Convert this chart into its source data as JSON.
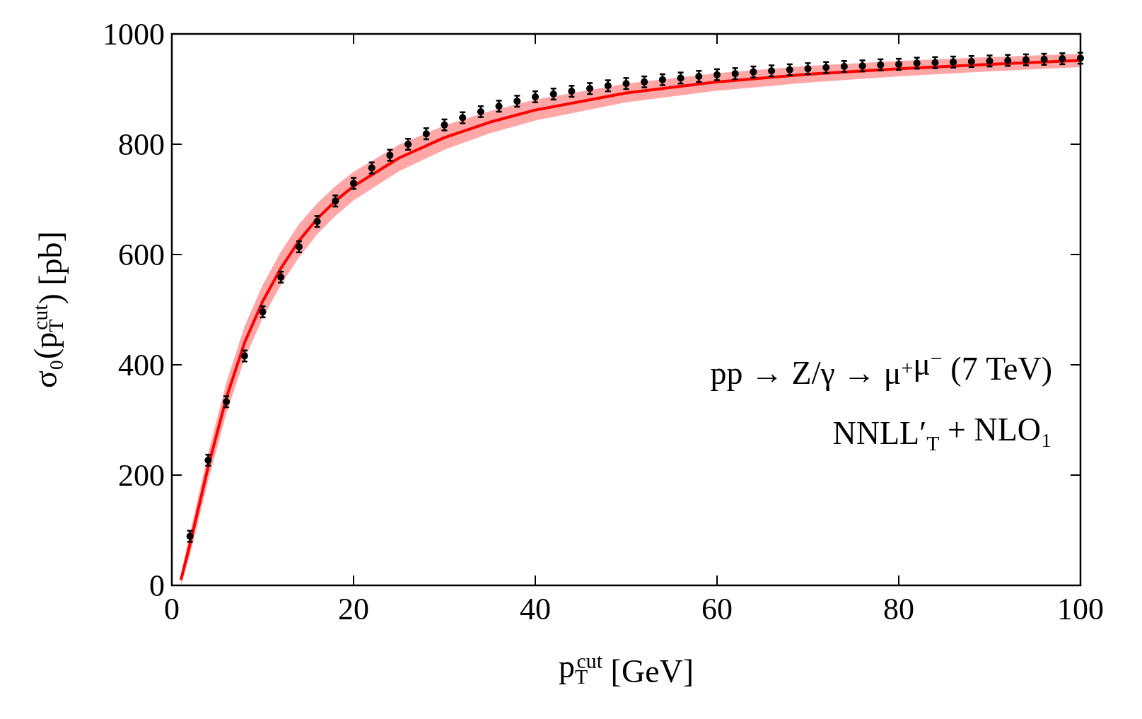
{
  "chart_data": {
    "type": "line",
    "xlabel": "p$_{T}$$^{cut}$ [GeV]",
    "ylabel": "σ₀(p$_{T}$$^{cut}$) [pb]",
    "xlim": [
      0,
      100
    ],
    "ylim": [
      0,
      1000
    ],
    "xticks": [
      0,
      20,
      40,
      60,
      80,
      100
    ],
    "yticks": [
      0,
      200,
      400,
      600,
      800,
      1000
    ],
    "grid": false,
    "annotations": [
      "pp → Z/γ → μ$^{+}$μ$^{−}$ (7 TeV)",
      "NNLL′$_{T}$ + NLO₁"
    ],
    "series": [
      {
        "color": "#ff0000",
        "x": [
          1,
          2,
          4,
          6,
          8,
          10,
          12,
          14,
          16,
          18,
          20,
          25,
          30,
          35,
          40,
          50,
          60,
          70,
          80,
          90,
          100
        ],
        "values": [
          10,
          75,
          215,
          340,
          440,
          515,
          575,
          625,
          665,
          697,
          724,
          775,
          812,
          840,
          862,
          893,
          913,
          927,
          937,
          945,
          952
        ],
        "lower": [
          0,
          55,
          190,
          312,
          410,
          485,
          545,
          595,
          637,
          670,
          698,
          751,
          790,
          820,
          843,
          876,
          897,
          912,
          923,
          932,
          940
        ],
        "upper": [
          20,
          95,
          240,
          368,
          470,
          545,
          605,
          655,
          693,
          724,
          750,
          799,
          834,
          860,
          881,
          910,
          929,
          942,
          951,
          958,
          964
        ]
      },
      {
        "type": "scatter",
        "color": "#000000",
        "marker": "circle",
        "x": [
          2,
          4,
          6,
          8,
          10,
          12,
          14,
          16,
          18,
          20,
          22,
          24,
          26,
          28,
          30,
          32,
          34,
          36,
          38,
          40,
          42,
          44,
          46,
          48,
          50,
          52,
          54,
          56,
          58,
          60,
          62,
          64,
          66,
          68,
          70,
          72,
          74,
          76,
          78,
          80,
          82,
          84,
          86,
          88,
          90,
          92,
          94,
          96,
          98,
          100
        ],
        "values": [
          89,
          227,
          333,
          416,
          496,
          559,
          614,
          660,
          697,
          729,
          757,
          780,
          800,
          819,
          835,
          848,
          859,
          869,
          878,
          886,
          891,
          896,
          901,
          906,
          910,
          913,
          917,
          920,
          923,
          926,
          928,
          931,
          933,
          935,
          937,
          939,
          941,
          942,
          944,
          945,
          947,
          948,
          949,
          950,
          951,
          952,
          953,
          954,
          955,
          956
        ],
        "errors": [
          10,
          10,
          10,
          10,
          10,
          10,
          10,
          10,
          10,
          10,
          10,
          10,
          10,
          10,
          10,
          10,
          10,
          10,
          10,
          10,
          10,
          10,
          10,
          10,
          10,
          10,
          10,
          10,
          10,
          10,
          10,
          10,
          10,
          10,
          10,
          10,
          10,
          10,
          10,
          10,
          10,
          10,
          10,
          10,
          10,
          10,
          10,
          10,
          10,
          10
        ]
      }
    ]
  }
}
